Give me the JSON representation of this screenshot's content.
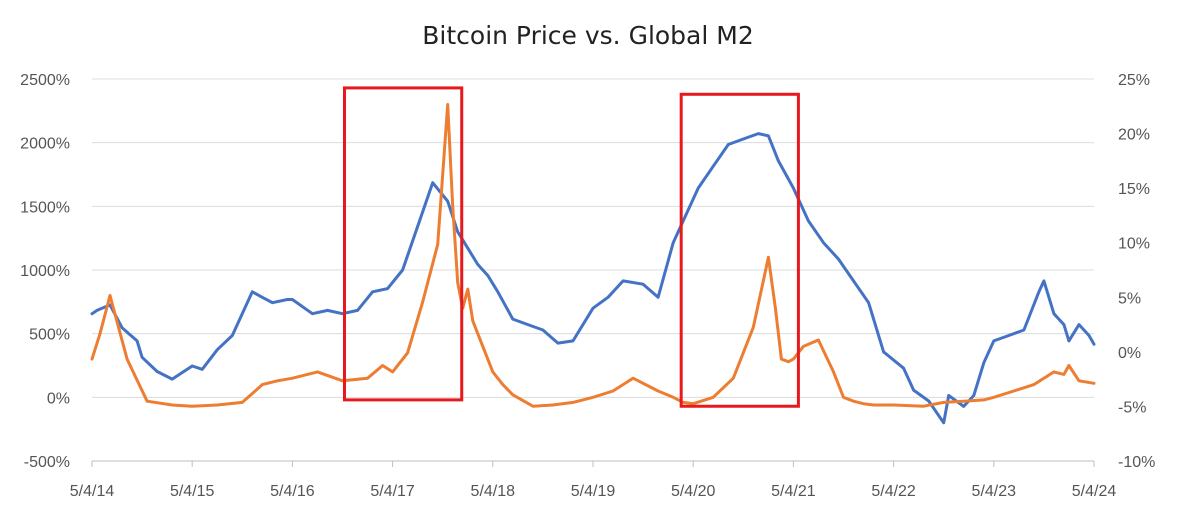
{
  "chart_data": {
    "type": "line",
    "title": "Bitcoin Price vs. Global M2",
    "xlabel": "",
    "ylabel_left": "",
    "ylabel_right": "",
    "x_ticks": [
      "5/4/14",
      "5/4/15",
      "5/4/16",
      "5/4/17",
      "5/4/18",
      "5/4/19",
      "5/4/20",
      "5/4/21",
      "5/4/22",
      "5/4/23",
      "5/4/24"
    ],
    "y_left_ticks": [
      "2500%",
      "2000%",
      "1500%",
      "1000%",
      "500%",
      "0%",
      "-500%"
    ],
    "y_right_ticks": [
      "25%",
      "20%",
      "15%",
      "10%",
      "5%",
      "0%",
      "-5%",
      "-10%"
    ],
    "ylim_left": [
      -500,
      2500
    ],
    "ylim_right": [
      -10,
      25
    ],
    "xlim": [
      2014.0,
      2024.0
    ],
    "grid": true,
    "series": [
      {
        "name": "Global M2",
        "axis": "right",
        "color": "#4472c4",
        "x": [
          2014.0,
          2014.05,
          2014.18,
          2014.3,
          2014.45,
          2014.5,
          2014.65,
          2014.8,
          2015.0,
          2015.1,
          2015.25,
          2015.4,
          2015.6,
          2015.7,
          2015.8,
          2015.95,
          2016.0,
          2016.2,
          2016.35,
          2016.5,
          2016.65,
          2016.8,
          2016.95,
          2017.1,
          2017.25,
          2017.4,
          2017.55,
          2017.65,
          2017.75,
          2017.85,
          2017.95,
          2018.05,
          2018.2,
          2018.35,
          2018.5,
          2018.65,
          2018.8,
          2019.0,
          2019.15,
          2019.3,
          2019.5,
          2019.65,
          2019.8,
          2019.9,
          2020.05,
          2020.2,
          2020.35,
          2020.5,
          2020.65,
          2020.75,
          2020.85,
          2021.0,
          2021.15,
          2021.3,
          2021.45,
          2021.6,
          2021.75,
          2021.9,
          2022.1,
          2022.2,
          2022.35,
          2022.5,
          2022.55,
          2022.7,
          2022.8,
          2022.9,
          2023.0,
          2023.15,
          2023.3,
          2023.45,
          2023.5,
          2023.6,
          2023.7,
          2023.75,
          2023.85,
          2023.95,
          2024.0
        ],
        "values": [
          3.5,
          3.8,
          4.3,
          2.2,
          1.0,
          -0.5,
          -1.8,
          -2.5,
          -1.3,
          -1.6,
          0.2,
          1.5,
          5.5,
          5.0,
          4.5,
          4.8,
          4.8,
          3.5,
          3.8,
          3.5,
          3.8,
          5.5,
          5.8,
          7.5,
          11.5,
          15.5,
          13.8,
          11.0,
          9.5,
          8.0,
          7.0,
          5.5,
          3.0,
          2.5,
          2.0,
          0.8,
          1.0,
          4.0,
          5.0,
          6.5,
          6.2,
          5.0,
          10.0,
          12.0,
          15.0,
          17.0,
          19.0,
          19.5,
          20.0,
          19.8,
          17.5,
          15.0,
          12.0,
          10.0,
          8.5,
          6.5,
          4.5,
          0.0,
          -1.5,
          -3.5,
          -4.5,
          -6.5,
          -4.0,
          -5.0,
          -4.0,
          -1.0,
          1.0,
          1.5,
          2.0,
          5.5,
          6.5,
          3.5,
          2.5,
          1.0,
          2.5,
          1.5,
          0.7
        ]
      },
      {
        "name": "Bitcoin Price",
        "axis": "left",
        "color": "#ed7d31",
        "x": [
          2014.0,
          2014.08,
          2014.18,
          2014.35,
          2014.55,
          2014.8,
          2015.0,
          2015.25,
          2015.5,
          2015.7,
          2015.85,
          2016.0,
          2016.25,
          2016.5,
          2016.75,
          2016.9,
          2017.0,
          2017.15,
          2017.3,
          2017.45,
          2017.55,
          2017.6,
          2017.65,
          2017.7,
          2017.75,
          2017.8,
          2017.9,
          2018.0,
          2018.1,
          2018.2,
          2018.4,
          2018.6,
          2018.8,
          2019.0,
          2019.2,
          2019.4,
          2019.65,
          2019.8,
          2019.9,
          2020.0,
          2020.2,
          2020.4,
          2020.6,
          2020.75,
          2020.82,
          2020.88,
          2020.95,
          2021.0,
          2021.1,
          2021.25,
          2021.4,
          2021.5,
          2021.6,
          2021.7,
          2021.8,
          2022.0,
          2022.3,
          2022.5,
          2022.7,
          2022.9,
          2023.0,
          2023.2,
          2023.4,
          2023.6,
          2023.7,
          2023.75,
          2023.85,
          2024.0
        ],
        "values": [
          300,
          500,
          800,
          300,
          -30,
          -60,
          -70,
          -60,
          -40,
          100,
          130,
          150,
          200,
          130,
          150,
          250,
          200,
          350,
          750,
          1200,
          2300,
          1500,
          900,
          700,
          850,
          600,
          400,
          200,
          100,
          20,
          -70,
          -60,
          -40,
          0,
          50,
          150,
          50,
          0,
          -40,
          -50,
          0,
          150,
          550,
          1100,
          700,
          300,
          280,
          300,
          400,
          450,
          200,
          0,
          -30,
          -50,
          -60,
          -60,
          -70,
          -40,
          -30,
          -20,
          0,
          50,
          100,
          200,
          180,
          250,
          130,
          110
        ]
      }
    ],
    "highlight_boxes": [
      {
        "label": "highlight-2017",
        "x_start": 2016.52,
        "x_end": 2017.69,
        "y_top": 2430,
        "y_bottom": -20,
        "color": "#e8191c"
      },
      {
        "label": "highlight-2020",
        "x_start": 2019.88,
        "x_end": 2021.05,
        "y_top": 2380,
        "y_bottom": -70,
        "color": "#e8191c"
      }
    ]
  }
}
